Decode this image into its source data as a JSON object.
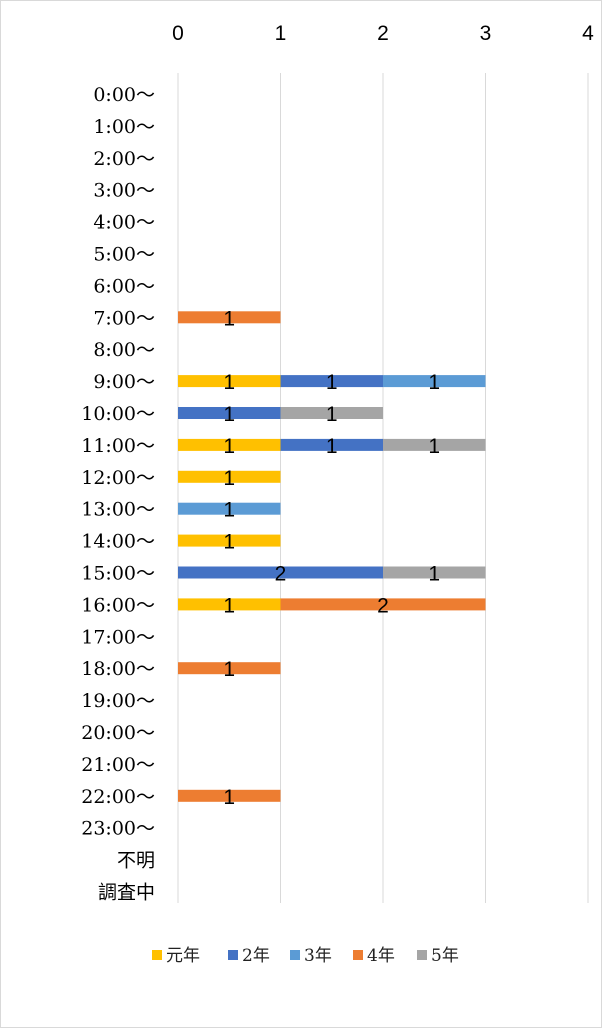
{
  "chart_data": {
    "type": "bar",
    "orientation": "horizontal",
    "stacked": true,
    "categories": [
      "0:00～",
      "1:00～",
      "2:00～",
      "3:00～",
      "4:00～",
      "5:00～",
      "6:00～",
      "7:00～",
      "8:00～",
      "9:00～",
      "10:00～",
      "11:00～",
      "12:00～",
      "13:00～",
      "14:00～",
      "15:00～",
      "16:00～",
      "17:00～",
      "18:00～",
      "19:00～",
      "20:00～",
      "21:00～",
      "22:00～",
      "23:00～",
      "不明",
      "調査中"
    ],
    "series": [
      {
        "name": "元年",
        "color": "#FFC000",
        "values": [
          0,
          0,
          0,
          0,
          0,
          0,
          0,
          0,
          0,
          1,
          0,
          1,
          1,
          0,
          1,
          0,
          1,
          0,
          0,
          0,
          0,
          0,
          0,
          0,
          0,
          0
        ]
      },
      {
        "name": "2年",
        "color": "#4472C4",
        "values": [
          0,
          0,
          0,
          0,
          0,
          0,
          0,
          0,
          0,
          1,
          1,
          1,
          0,
          0,
          0,
          2,
          0,
          0,
          0,
          0,
          0,
          0,
          0,
          0,
          0,
          0
        ]
      },
      {
        "name": "3年",
        "color": "#5B9BD5",
        "values": [
          0,
          0,
          0,
          0,
          0,
          0,
          0,
          0,
          0,
          1,
          0,
          0,
          0,
          1,
          0,
          0,
          0,
          0,
          0,
          0,
          0,
          0,
          0,
          0,
          0,
          0
        ]
      },
      {
        "name": "4年",
        "color": "#ED7D31",
        "values": [
          0,
          0,
          0,
          0,
          0,
          0,
          0,
          1,
          0,
          0,
          0,
          0,
          0,
          0,
          0,
          0,
          2,
          0,
          1,
          0,
          0,
          0,
          1,
          0,
          0,
          0
        ]
      },
      {
        "name": "5年",
        "color": "#A5A5A5",
        "values": [
          0,
          0,
          0,
          0,
          0,
          0,
          0,
          0,
          0,
          0,
          1,
          1,
          0,
          0,
          0,
          1,
          0,
          0,
          0,
          0,
          0,
          0,
          0,
          0,
          0,
          0
        ]
      }
    ],
    "x_ticks": [
      "0",
      "1",
      "2",
      "3",
      "4"
    ],
    "xlim": [
      0,
      4
    ],
    "x_axis_position": "top",
    "gridlines": true,
    "data_labels": true,
    "legend_position": "bottom"
  }
}
